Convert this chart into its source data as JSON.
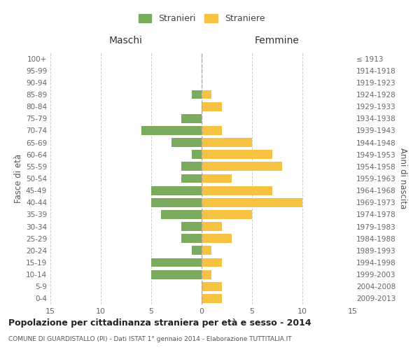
{
  "age_groups": [
    "0-4",
    "5-9",
    "10-14",
    "15-19",
    "20-24",
    "25-29",
    "30-34",
    "35-39",
    "40-44",
    "45-49",
    "50-54",
    "55-59",
    "60-64",
    "65-69",
    "70-74",
    "75-79",
    "80-84",
    "85-89",
    "90-94",
    "95-99",
    "100+"
  ],
  "birth_years": [
    "2009-2013",
    "2004-2008",
    "1999-2003",
    "1994-1998",
    "1989-1993",
    "1984-1988",
    "1979-1983",
    "1974-1978",
    "1969-1973",
    "1964-1968",
    "1959-1963",
    "1954-1958",
    "1949-1953",
    "1944-1948",
    "1939-1943",
    "1934-1938",
    "1929-1933",
    "1924-1928",
    "1919-1923",
    "1914-1918",
    "≤ 1913"
  ],
  "maschi": [
    0,
    0,
    5,
    5,
    1,
    2,
    2,
    4,
    5,
    5,
    2,
    2,
    1,
    3,
    6,
    2,
    0,
    1,
    0,
    0,
    0
  ],
  "femmine": [
    2,
    2,
    1,
    2,
    1,
    3,
    2,
    5,
    10,
    7,
    3,
    8,
    7,
    5,
    2,
    0,
    2,
    1,
    0,
    0,
    0
  ],
  "male_color": "#7aab5e",
  "female_color": "#f5c242",
  "title": "Popolazione per cittadinanza straniera per età e sesso - 2014",
  "subtitle": "COMUNE DI GUARDISTALLO (PI) - Dati ISTAT 1° gennaio 2014 - Elaborazione TUTTITALIA.IT",
  "legend_male": "Stranieri",
  "legend_female": "Straniere",
  "xlabel_left": "Maschi",
  "xlabel_right": "Femmine",
  "ylabel_left": "Fasce di età",
  "ylabel_right": "Anni di nascita",
  "xlim": 15,
  "background_color": "#ffffff",
  "grid_color": "#cccccc"
}
